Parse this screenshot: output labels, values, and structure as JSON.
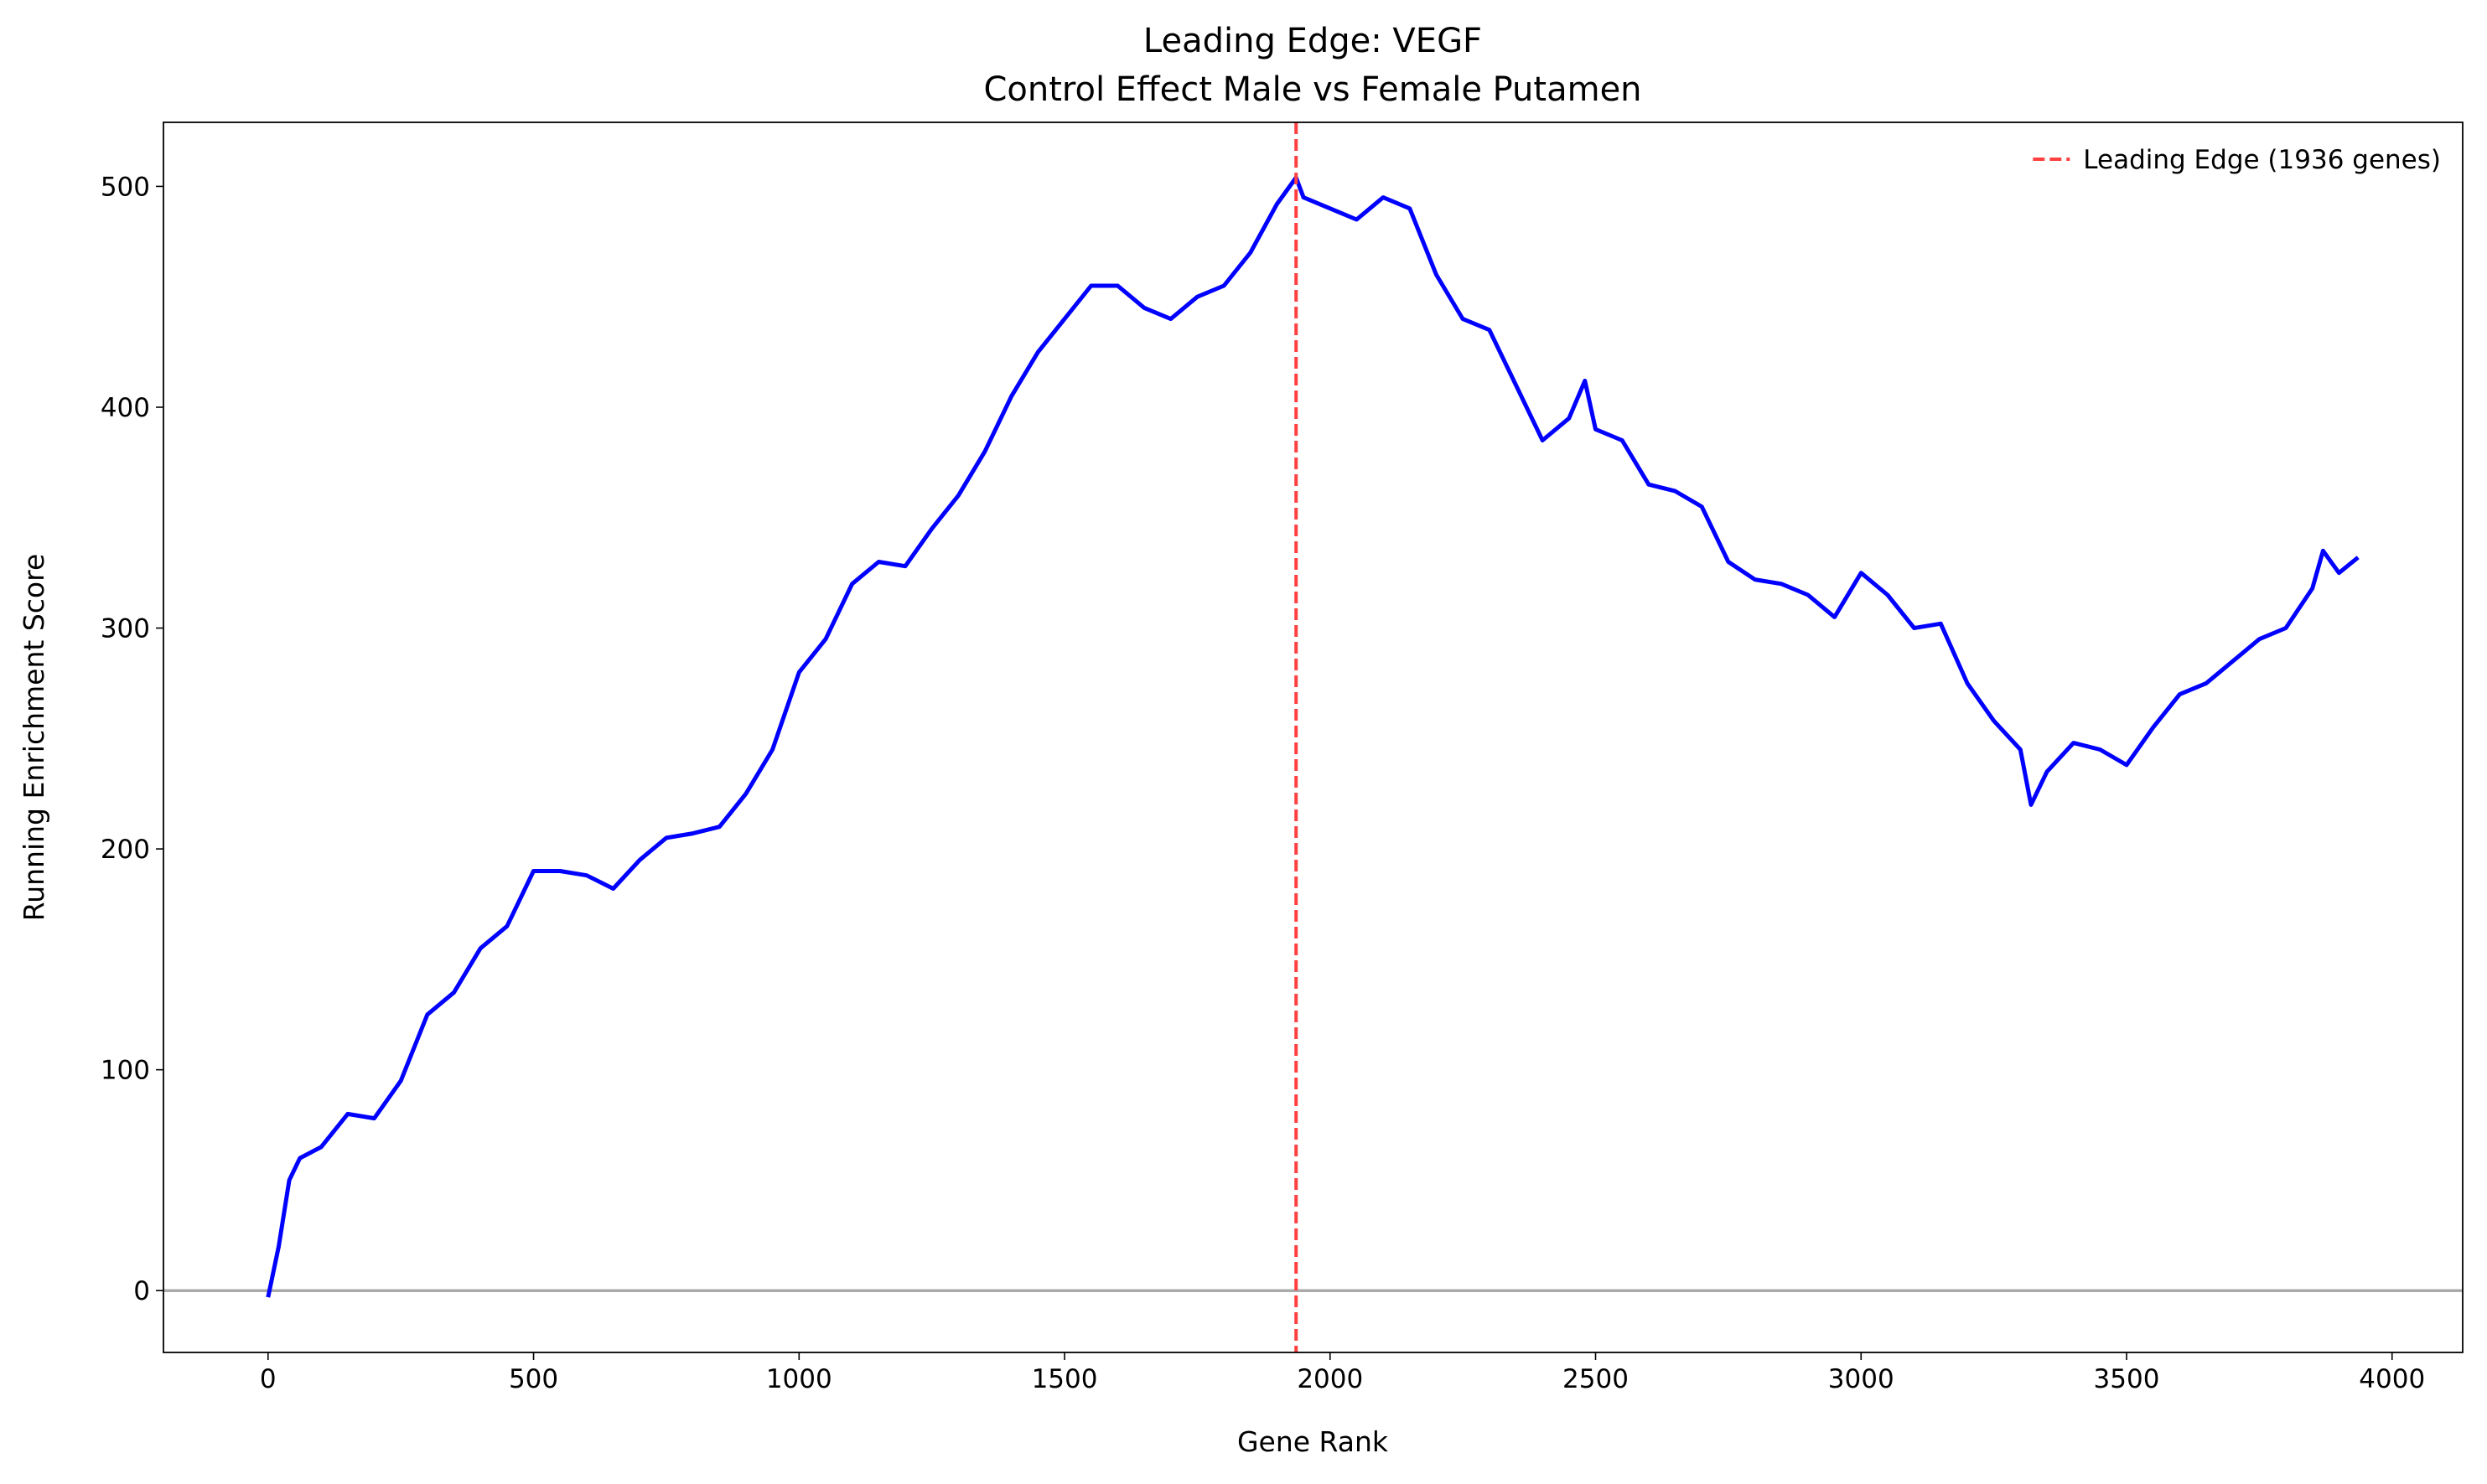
{
  "chart_data": {
    "type": "line",
    "title": "Leading Edge: VEGF",
    "subtitle": "Control Effect Male vs Female Putamen",
    "x_label": "Gene Rank",
    "y_label": "Running Enrichment Score",
    "x": [
      0,
      20,
      40,
      60,
      100,
      150,
      200,
      250,
      300,
      350,
      400,
      450,
      500,
      550,
      600,
      650,
      700,
      750,
      800,
      850,
      900,
      950,
      1000,
      1050,
      1100,
      1150,
      1200,
      1250,
      1300,
      1350,
      1400,
      1450,
      1500,
      1550,
      1600,
      1650,
      1700,
      1750,
      1800,
      1850,
      1900,
      1936,
      1950,
      2000,
      2050,
      2100,
      2150,
      2200,
      2250,
      2300,
      2350,
      2400,
      2450,
      2480,
      2500,
      2550,
      2600,
      2650,
      2700,
      2750,
      2800,
      2850,
      2900,
      2950,
      3000,
      3050,
      3100,
      3150,
      3200,
      3250,
      3300,
      3320,
      3350,
      3400,
      3450,
      3500,
      3550,
      3600,
      3650,
      3700,
      3750,
      3800,
      3850,
      3870,
      3900,
      3936
    ],
    "series": [
      {
        "color": "#0000ff",
        "values": [
          -3,
          20,
          50,
          60,
          65,
          80,
          78,
          95,
          125,
          135,
          155,
          165,
          190,
          190,
          188,
          182,
          195,
          205,
          207,
          210,
          225,
          245,
          280,
          295,
          320,
          330,
          328,
          345,
          360,
          380,
          405,
          425,
          440,
          455,
          455,
          445,
          440,
          450,
          455,
          470,
          492,
          504,
          495,
          490,
          485,
          495,
          490,
          460,
          440,
          435,
          410,
          385,
          395,
          412,
          390,
          385,
          365,
          362,
          355,
          330,
          322,
          320,
          315,
          305,
          325,
          315,
          300,
          302,
          275,
          258,
          245,
          220,
          235,
          248,
          245,
          238,
          255,
          270,
          275,
          285,
          295,
          300,
          318,
          335,
          325,
          332
        ]
      }
    ],
    "vline": {
      "x": 1936,
      "name": "Leading Edge (1936 genes)",
      "color": "#ff4040"
    },
    "hline": {
      "y": 0,
      "color": "#aaaaaa"
    },
    "xlim": [
      -197,
      4133
    ],
    "ylim": [
      -28,
      529
    ],
    "xticks": [
      0,
      500,
      1000,
      1500,
      2000,
      2500,
      3000,
      3500,
      4000
    ],
    "yticks": [
      0,
      100,
      200,
      300,
      400,
      500
    ],
    "legend": "upper right",
    "grid": false
  }
}
